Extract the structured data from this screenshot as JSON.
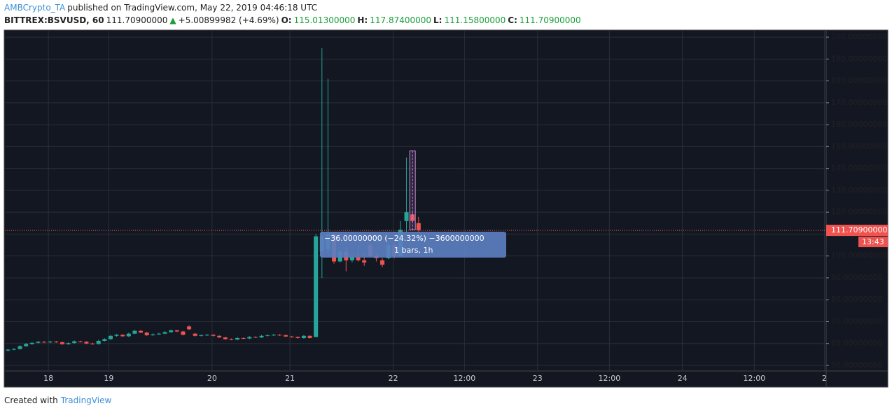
{
  "header": {
    "author": "AMBCrypto_TA",
    "published": "published on TradingView.com, May 22, 2019 04:46:18 UTC",
    "symbol": "BITTREX:BSVUSD, 60",
    "last": "111.70900000",
    "arrow": "▲",
    "change": "+5.00899982 (+4.69%)",
    "o_label": "O:",
    "o": "115.01300000",
    "h_label": "H:",
    "h": "117.87400000",
    "l_label": "L:",
    "l": "111.15800000",
    "c_label": "C:",
    "c": "111.70900000"
  },
  "chart_data": {
    "type": "candlestick",
    "up_color": "#26a69a",
    "down_color": "#ef5350",
    "grid": true,
    "ylim": [
      47.44,
      202.9
    ],
    "yticks": [
      {
        "value": 50,
        "label": "50.00000000"
      },
      {
        "value": 60,
        "label": "60.00000000"
      },
      {
        "value": 70,
        "label": "70.00000000"
      },
      {
        "value": 80,
        "label": "80.00000000"
      },
      {
        "value": 90,
        "label": "90.00000000"
      },
      {
        "value": 100,
        "label": "100.00000000"
      },
      {
        "value": 110,
        "label": "110.00000000"
      },
      {
        "value": 120,
        "label": "120.00000000"
      },
      {
        "value": 130,
        "label": "130.00000000"
      },
      {
        "value": 140,
        "label": "140.00000000"
      },
      {
        "value": 150,
        "label": "150.00000000"
      },
      {
        "value": 160,
        "label": "160.00000000"
      },
      {
        "value": 170,
        "label": "170.00000000"
      },
      {
        "value": 180,
        "label": "180.00000000"
      },
      {
        "value": 190,
        "label": "190.00000000"
      },
      {
        "value": 200,
        "label": "200.00000000"
      }
    ],
    "xlim": [
      0,
      136
    ],
    "xticks": [
      {
        "value": 7.2,
        "label": "18"
      },
      {
        "value": 17.2,
        "label": "19"
      },
      {
        "value": 34.3,
        "label": "20"
      },
      {
        "value": 47.2,
        "label": "21"
      },
      {
        "value": 64.3,
        "label": "22"
      },
      {
        "value": 76.1,
        "label": "12:00"
      },
      {
        "value": 88.2,
        "label": "23"
      },
      {
        "value": 100.1,
        "label": "12:00"
      },
      {
        "value": 112.2,
        "label": "24"
      },
      {
        "value": 124.1,
        "label": "12:00"
      },
      {
        "value": 135.7,
        "label": "2"
      }
    ],
    "ohlc": [
      [
        56.8,
        57.6,
        56.4,
        57.2
      ],
      [
        57.2,
        57.9,
        56.9,
        57.5
      ],
      [
        57.5,
        59.2,
        57.2,
        58.8
      ],
      [
        58.8,
        60.2,
        58.5,
        59.8
      ],
      [
        59.8,
        60.7,
        59.4,
        60.3
      ],
      [
        60.3,
        61.2,
        60.0,
        60.8
      ],
      [
        60.8,
        61.1,
        60.2,
        60.5
      ],
      [
        60.5,
        61.3,
        60.2,
        60.9
      ],
      [
        60.9,
        61.2,
        60.3,
        60.6
      ],
      [
        60.6,
        60.9,
        59.4,
        59.7
      ],
      [
        59.7,
        60.5,
        59.4,
        60.2
      ],
      [
        60.2,
        61.4,
        59.9,
        61.0
      ],
      [
        61.0,
        61.3,
        60.5,
        60.8
      ],
      [
        60.8,
        61.1,
        59.7,
        60.0
      ],
      [
        60.0,
        60.4,
        59.4,
        59.8
      ],
      [
        59.8,
        61.6,
        59.5,
        61.2
      ],
      [
        61.2,
        62.4,
        60.9,
        62.0
      ],
      [
        62.0,
        63.9,
        61.7,
        63.5
      ],
      [
        63.5,
        64.4,
        63.1,
        64.0
      ],
      [
        64.0,
        64.3,
        63.0,
        63.3
      ],
      [
        63.3,
        64.9,
        63.0,
        64.5
      ],
      [
        64.5,
        66.2,
        64.2,
        65.8
      ],
      [
        65.8,
        66.1,
        64.7,
        65.0
      ],
      [
        65.0,
        65.3,
        63.5,
        63.8
      ],
      [
        63.8,
        64.6,
        63.5,
        64.2
      ],
      [
        64.2,
        64.9,
        63.9,
        64.5
      ],
      [
        64.5,
        65.6,
        64.2,
        65.2
      ],
      [
        65.2,
        66.4,
        64.9,
        66.0
      ],
      [
        66.0,
        66.3,
        65.2,
        65.5
      ],
      [
        65.5,
        65.8,
        63.7,
        64.0
      ],
      [
        67.8,
        68.3,
        66.2,
        66.5
      ],
      [
        64.5,
        64.8,
        63.2,
        63.5
      ],
      [
        63.5,
        64.2,
        63.2,
        63.8
      ],
      [
        63.8,
        64.3,
        63.5,
        64.0
      ],
      [
        64.0,
        64.3,
        63.2,
        63.5
      ],
      [
        63.5,
        63.8,
        62.5,
        62.8
      ],
      [
        62.8,
        63.1,
        61.7,
        62.0
      ],
      [
        62.0,
        62.3,
        61.5,
        61.8
      ],
      [
        61.8,
        62.9,
        61.5,
        62.5
      ],
      [
        62.5,
        62.8,
        62.0,
        62.3
      ],
      [
        62.3,
        63.4,
        62.0,
        63.0
      ],
      [
        63.0,
        63.3,
        62.5,
        62.8
      ],
      [
        62.8,
        63.9,
        62.5,
        63.5
      ],
      [
        63.5,
        64.2,
        63.2,
        63.8
      ],
      [
        63.8,
        64.4,
        63.5,
        64.0
      ],
      [
        64.0,
        64.3,
        63.5,
        63.8
      ],
      [
        63.8,
        64.1,
        62.9,
        63.2
      ],
      [
        63.2,
        63.5,
        62.7,
        63.0
      ],
      [
        63.0,
        63.3,
        62.2,
        62.5
      ],
      [
        62.5,
        63.9,
        62.2,
        63.5
      ],
      [
        63.5,
        63.8,
        62.2,
        62.5
      ],
      [
        63.0,
        110.0,
        62.8,
        109.0
      ],
      [
        102.0,
        195.0,
        90.0,
        109.0
      ],
      [
        103.0,
        181.0,
        101.0,
        110.0
      ],
      [
        110.0,
        111.0,
        96.5,
        97.5
      ],
      [
        97.5,
        103.0,
        97.0,
        102.0
      ],
      [
        102.0,
        104.0,
        93.0,
        98.0
      ],
      [
        98.0,
        100.5,
        97.0,
        99.5
      ],
      [
        99.5,
        105.0,
        97.5,
        98.0
      ],
      [
        98.0,
        101.0,
        95.5,
        97.0
      ],
      [
        105.0,
        106.0,
        99.5,
        100.0
      ],
      [
        100.0,
        101.0,
        97.5,
        99.0
      ],
      [
        98.0,
        99.0,
        95.0,
        96.0
      ],
      [
        99.0,
        106.0,
        98.5,
        105.0
      ],
      [
        105.0,
        106.0,
        99.0,
        100.0
      ],
      [
        100.0,
        116.0,
        99.5,
        112.0
      ],
      [
        116.0,
        145.0,
        111.0,
        120.0
      ],
      [
        119.0,
        120.0,
        115.0,
        116.0
      ],
      [
        115.013,
        117.874,
        111.158,
        111.709
      ]
    ],
    "last_price_label": "111.70900000",
    "countdown": "13:43",
    "measure_line1": "−36.00000000 (−24.32%) −3600000000",
    "measure_line2": "1 bars, 1h"
  },
  "footer": {
    "created": "Created with",
    "brand": "TradingView"
  }
}
